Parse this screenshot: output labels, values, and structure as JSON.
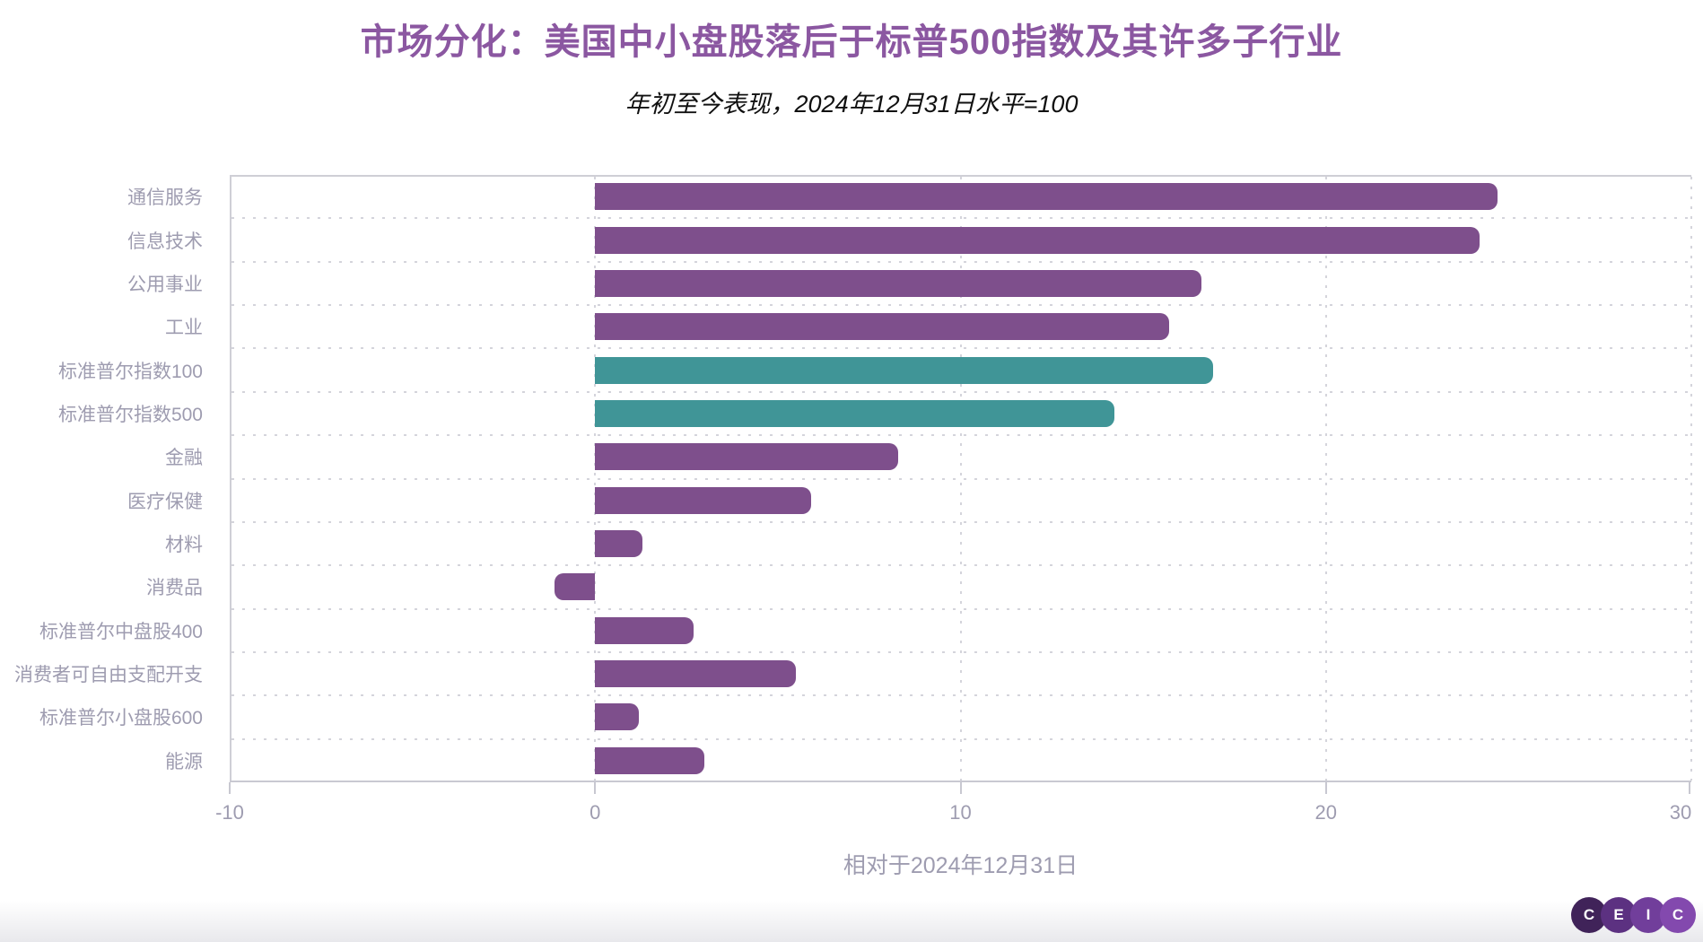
{
  "header": {
    "title": "市场分化：美国中小盘股落后于标普500指数及其许多子行业",
    "subtitle": "年初至今表现，2024年12月31日水平=100"
  },
  "chart_data": {
    "type": "bar",
    "orientation": "horizontal",
    "title": "市场分化：美国中小盘股落后于标普500指数及其许多子行业",
    "subtitle": "年初至今表现，2024年12月31日水平=100",
    "xlabel": "相对于2024年12月31日",
    "ylabel": "",
    "xlim": [
      -10,
      30
    ],
    "x_ticks": [
      -10,
      0,
      10,
      20,
      30
    ],
    "grid": "dotted",
    "legend_position": "none",
    "categories": [
      "通信服务",
      "信息技术",
      "公用事业",
      "工业",
      "标准普尔指数100",
      "标准普尔指数500",
      "金融",
      "医疗保健",
      "材料",
      "消费品",
      "标准普尔中盘股400",
      "消费者可自由支配开支",
      "标准普尔小盘股600",
      "能源"
    ],
    "values": [
      24.7,
      24.2,
      16.6,
      15.7,
      16.9,
      14.2,
      8.3,
      5.9,
      1.3,
      -1.1,
      2.7,
      5.5,
      1.2,
      3.0
    ],
    "bar_colors": [
      "purple",
      "purple",
      "purple",
      "purple",
      "teal",
      "teal",
      "purple",
      "purple",
      "purple",
      "purple",
      "purple",
      "purple",
      "purple",
      "purple"
    ]
  },
  "colors": {
    "bar_purple": "#7E4F8C",
    "bar_teal": "#409597",
    "title_text": "#8B57A1",
    "subtitle_text": "#101010",
    "axis_text": "#9E9CB0",
    "grid_line": "#D4D4DB",
    "plot_border": "#CFCFD6"
  },
  "branding": {
    "logo_letters": [
      "C",
      "E",
      "I",
      "C"
    ],
    "logo_circle_colors": [
      "#402359",
      "#5C3181",
      "#713E9B",
      "#8349AE"
    ]
  }
}
